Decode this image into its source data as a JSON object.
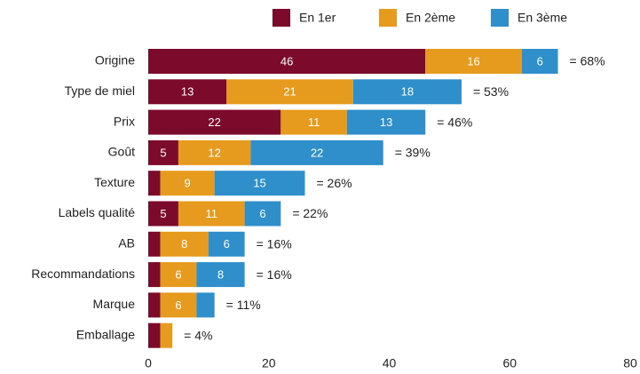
{
  "chart_data": {
    "type": "stacked-barh",
    "categories": [
      "Origine",
      "Type de miel",
      "Prix",
      "Goût",
      "Texture",
      "Labels qualité",
      "AB",
      "Recommandations",
      "Marque",
      "Emballage"
    ],
    "series": [
      {
        "name": "En 1er",
        "color": "#7c0a2b",
        "values": [
          46,
          13,
          22,
          5,
          2,
          5,
          2,
          2,
          2,
          2
        ]
      },
      {
        "name": "En 2ème",
        "color": "#e79b1e",
        "values": [
          16,
          21,
          11,
          12,
          9,
          11,
          8,
          6,
          6,
          2
        ]
      },
      {
        "name": "En 3ème",
        "color": "#2f8fca",
        "values": [
          6,
          18,
          13,
          22,
          15,
          6,
          6,
          8,
          3,
          0
        ]
      }
    ],
    "total_labels": [
      "= 68%",
      "= 53%",
      "= 46%",
      "= 39%",
      "= 26%",
      "= 22%",
      "= 16%",
      "= 16%",
      "= 11%",
      "= 4%"
    ],
    "xlim": [
      0,
      80
    ],
    "xticks": [
      0,
      20,
      40,
      60,
      80
    ],
    "grid": false,
    "legend": "top"
  }
}
